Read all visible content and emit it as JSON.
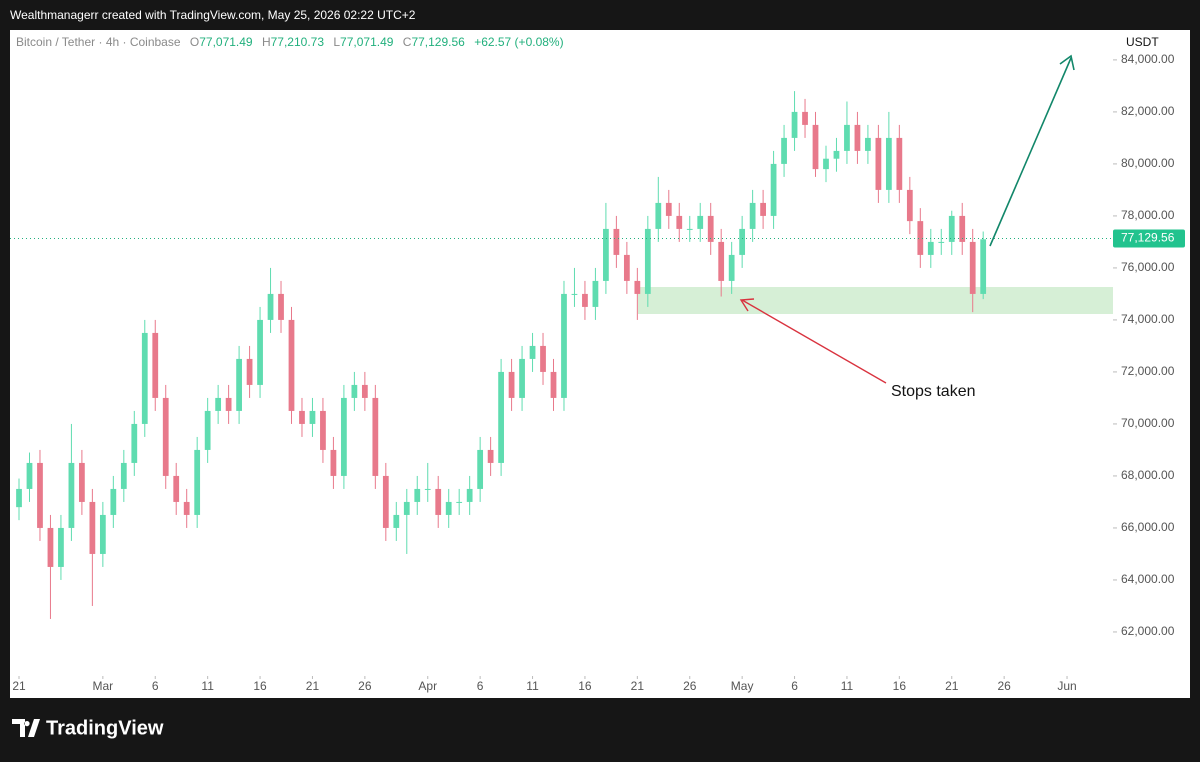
{
  "top_bar": "Wealthmanagerr created with TradingView.com, May 25, 2026 02:22 UTC+2",
  "footer_logo": "TradingView",
  "header": {
    "symbol": "Bitcoin / Tether · 4h · Coinbase",
    "open_label": "O",
    "open": "77,071.49",
    "high_label": "H",
    "high": "77,210.73",
    "low_label": "L",
    "low": "77,071.49",
    "close_label": "C",
    "close": "77,129.56",
    "change": "+62.57 (+0.08%)"
  },
  "chart_data": {
    "type": "candlestick",
    "currency": "USDT",
    "annotation": "Stops taken",
    "up_color": "#5fdcb0",
    "down_color": "#e8798b",
    "last_price": {
      "value": 77129.56,
      "label": "77,129.56"
    },
    "xlim": [
      -0.86,
      104.1
    ],
    "ylim": [
      60460,
      85150
    ],
    "xticks": [
      {
        "value": 0,
        "label": "21"
      },
      {
        "value": 8,
        "label": "Mar"
      },
      {
        "value": 13,
        "label": "6"
      },
      {
        "value": 18,
        "label": "11"
      },
      {
        "value": 23,
        "label": "16"
      },
      {
        "value": 28,
        "label": "21"
      },
      {
        "value": 33,
        "label": "26"
      },
      {
        "value": 39,
        "label": "Apr"
      },
      {
        "value": 44,
        "label": "6"
      },
      {
        "value": 49,
        "label": "11"
      },
      {
        "value": 54,
        "label": "16"
      },
      {
        "value": 59,
        "label": "21"
      },
      {
        "value": 64,
        "label": "26"
      },
      {
        "value": 69,
        "label": "May"
      },
      {
        "value": 74,
        "label": "6"
      },
      {
        "value": 79,
        "label": "11"
      },
      {
        "value": 84,
        "label": "16"
      },
      {
        "value": 89,
        "label": "21"
      },
      {
        "value": 94,
        "label": "26"
      },
      {
        "value": 100,
        "label": "Jun"
      }
    ],
    "yticks": [
      {
        "value": 62000,
        "label": "62,000.00"
      },
      {
        "value": 64000,
        "label": "64,000.00"
      },
      {
        "value": 66000,
        "label": "66,000.00"
      },
      {
        "value": 68000,
        "label": "68,000.00"
      },
      {
        "value": 70000,
        "label": "70,000.00"
      },
      {
        "value": 72000,
        "label": "72,000.00"
      },
      {
        "value": 74000,
        "label": "74,000.00"
      },
      {
        "value": 76000,
        "label": "76,000.00"
      },
      {
        "value": 78000,
        "label": "78,000.00"
      },
      {
        "value": 80000,
        "label": "80,000.00"
      },
      {
        "value": 82000,
        "label": "82,000.00"
      },
      {
        "value": 84000,
        "label": "84,000.00"
      }
    ],
    "ohlc": [
      [
        66800,
        67900,
        66300,
        67500
      ],
      [
        67500,
        68900,
        67000,
        68500
      ],
      [
        68500,
        69000,
        65500,
        66000
      ],
      [
        66000,
        66500,
        62500,
        64500
      ],
      [
        64500,
        66500,
        64000,
        66000
      ],
      [
        66000,
        70000,
        65500,
        68500
      ],
      [
        68500,
        69000,
        66500,
        67000
      ],
      [
        67000,
        67500,
        63000,
        65000
      ],
      [
        65000,
        67000,
        64500,
        66500
      ],
      [
        66500,
        68000,
        66000,
        67500
      ],
      [
        67500,
        69000,
        67000,
        68500
      ],
      [
        68500,
        70500,
        68000,
        70000
      ],
      [
        70000,
        74000,
        69500,
        73500
      ],
      [
        73500,
        74000,
        70500,
        71000
      ],
      [
        71000,
        71500,
        67500,
        68000
      ],
      [
        68000,
        68500,
        66500,
        67000
      ],
      [
        67000,
        67500,
        66000,
        66500
      ],
      [
        66500,
        69500,
        66000,
        69000
      ],
      [
        69000,
        71000,
        68500,
        70500
      ],
      [
        70500,
        71500,
        70000,
        71000
      ],
      [
        71000,
        71500,
        70000,
        70500
      ],
      [
        70500,
        73000,
        70000,
        72500
      ],
      [
        72500,
        73000,
        71000,
        71500
      ],
      [
        71500,
        74500,
        71000,
        74000
      ],
      [
        74000,
        76000,
        73500,
        75000
      ],
      [
        75000,
        75500,
        73500,
        74000
      ],
      [
        74000,
        74500,
        70000,
        70500
      ],
      [
        70500,
        71000,
        69500,
        70000
      ],
      [
        70000,
        71000,
        69500,
        70500
      ],
      [
        70500,
        71000,
        68500,
        69000
      ],
      [
        69000,
        69500,
        67500,
        68000
      ],
      [
        68000,
        71500,
        67500,
        71000
      ],
      [
        71000,
        72000,
        70500,
        71500
      ],
      [
        71500,
        72000,
        70500,
        71000
      ],
      [
        71000,
        71500,
        67500,
        68000
      ],
      [
        68000,
        68500,
        65500,
        66000
      ],
      [
        66000,
        67000,
        65500,
        66500
      ],
      [
        66500,
        67500,
        65000,
        67000
      ],
      [
        67000,
        68000,
        66500,
        67500
      ],
      [
        67500,
        68500,
        67000,
        67500
      ],
      [
        67500,
        68000,
        66000,
        66500
      ],
      [
        66500,
        67500,
        66000,
        67000
      ],
      [
        67000,
        67500,
        66500,
        67000
      ],
      [
        67000,
        68000,
        66500,
        67500
      ],
      [
        67500,
        69500,
        67000,
        69000
      ],
      [
        69000,
        69500,
        68000,
        68500
      ],
      [
        68500,
        72500,
        68000,
        72000
      ],
      [
        72000,
        72500,
        70500,
        71000
      ],
      [
        71000,
        73000,
        70500,
        72500
      ],
      [
        72500,
        73500,
        72000,
        73000
      ],
      [
        73000,
        73500,
        71500,
        72000
      ],
      [
        72000,
        72500,
        70500,
        71000
      ],
      [
        71000,
        75500,
        70500,
        75000
      ],
      [
        75000,
        76000,
        74500,
        75000
      ],
      [
        75000,
        75500,
        74000,
        74500
      ],
      [
        74500,
        76000,
        74000,
        75500
      ],
      [
        75500,
        78500,
        75000,
        77500
      ],
      [
        77500,
        78000,
        76000,
        76500
      ],
      [
        76500,
        77000,
        75000,
        75500
      ],
      [
        75500,
        76000,
        74000,
        75000
      ],
      [
        75000,
        78000,
        74500,
        77500
      ],
      [
        77500,
        79500,
        77000,
        78500
      ],
      [
        78500,
        79000,
        77500,
        78000
      ],
      [
        78000,
        78500,
        77000,
        77500
      ],
      [
        77500,
        78000,
        77000,
        77500
      ],
      [
        77500,
        78500,
        77000,
        78000
      ],
      [
        78000,
        78500,
        76500,
        77000
      ],
      [
        77000,
        77500,
        74900,
        75500
      ],
      [
        75500,
        77000,
        75000,
        76500
      ],
      [
        76500,
        78000,
        76000,
        77500
      ],
      [
        77500,
        79000,
        77000,
        78500
      ],
      [
        78500,
        79000,
        77500,
        78000
      ],
      [
        78000,
        80500,
        77500,
        80000
      ],
      [
        80000,
        81500,
        79500,
        81000
      ],
      [
        81000,
        82800,
        80500,
        82000
      ],
      [
        82000,
        82500,
        81000,
        81500
      ],
      [
        81500,
        82000,
        79500,
        79800
      ],
      [
        79800,
        80700,
        79300,
        80200
      ],
      [
        80200,
        81000,
        79700,
        80500
      ],
      [
        80500,
        82400,
        80000,
        81500
      ],
      [
        81500,
        82000,
        80000,
        80500
      ],
      [
        80500,
        81500,
        80000,
        81000
      ],
      [
        81000,
        81500,
        78500,
        79000
      ],
      [
        79000,
        82000,
        78500,
        81000
      ],
      [
        81000,
        81500,
        78500,
        79000
      ],
      [
        79000,
        79500,
        77300,
        77800
      ],
      [
        77800,
        78300,
        76000,
        76500
      ],
      [
        76500,
        77500,
        76000,
        77000
      ],
      [
        77000,
        77500,
        76500,
        77000
      ],
      [
        77000,
        78200,
        76500,
        78000
      ],
      [
        78000,
        78500,
        76500,
        77000
      ],
      [
        77000,
        77500,
        74300,
        75000
      ],
      [
        75000,
        77400,
        74800,
        77100
      ]
    ]
  }
}
